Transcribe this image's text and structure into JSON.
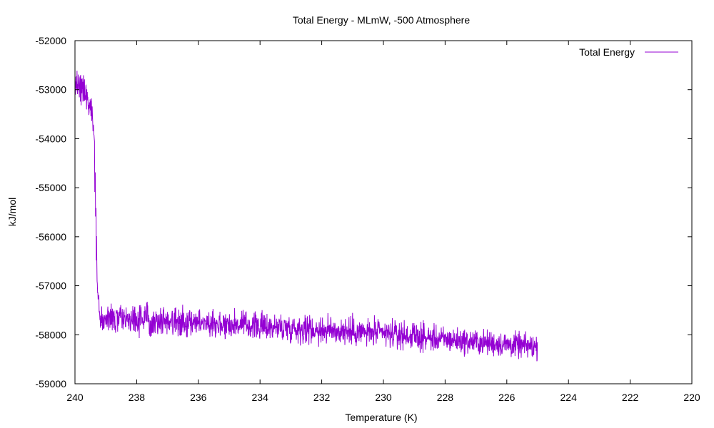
{
  "chart_data": {
    "type": "line",
    "title": "Total Energy - MLmW, -500 Atmosphere",
    "xlabel": "Temperature (K)",
    "ylabel": "kJ/mol",
    "xlim": [
      240,
      220
    ],
    "ylim": [
      -59000,
      -52000
    ],
    "x_ticks": [
      "240",
      "238",
      "236",
      "234",
      "232",
      "230",
      "228",
      "226",
      "224",
      "222",
      "220"
    ],
    "y_ticks": [
      "-52000",
      "-53000",
      "-54000",
      "-55000",
      "-56000",
      "-57000",
      "-58000",
      "-59000"
    ],
    "grid": false,
    "legend_position": "top-right",
    "series": [
      {
        "name": "Total Energy",
        "color": "#9400d3",
        "x_range": [
          240,
          225
        ],
        "envelope": [
          {
            "x": 240.0,
            "low": -53200,
            "high": -52600
          },
          {
            "x": 239.8,
            "low": -53300,
            "high": -52500
          },
          {
            "x": 239.6,
            "low": -53500,
            "high": -52800
          },
          {
            "x": 239.4,
            "low": -53900,
            "high": -53300
          },
          {
            "x": 239.35,
            "low": -55200,
            "high": -53900
          },
          {
            "x": 239.3,
            "low": -57200,
            "high": -55700
          },
          {
            "x": 239.25,
            "low": -57600,
            "high": -56700
          },
          {
            "x": 239.2,
            "low": -58000,
            "high": -57400
          },
          {
            "x": 238.0,
            "low": -58050,
            "high": -57300
          },
          {
            "x": 236.0,
            "low": -58100,
            "high": -57400
          },
          {
            "x": 234.0,
            "low": -58150,
            "high": -57500
          },
          {
            "x": 232.0,
            "low": -58250,
            "high": -57550
          },
          {
            "x": 230.0,
            "low": -58300,
            "high": -57650
          },
          {
            "x": 228.0,
            "low": -58400,
            "high": -57800
          },
          {
            "x": 226.0,
            "low": -58500,
            "high": -57900
          },
          {
            "x": 225.0,
            "low": -58550,
            "high": -57950
          }
        ]
      }
    ]
  }
}
